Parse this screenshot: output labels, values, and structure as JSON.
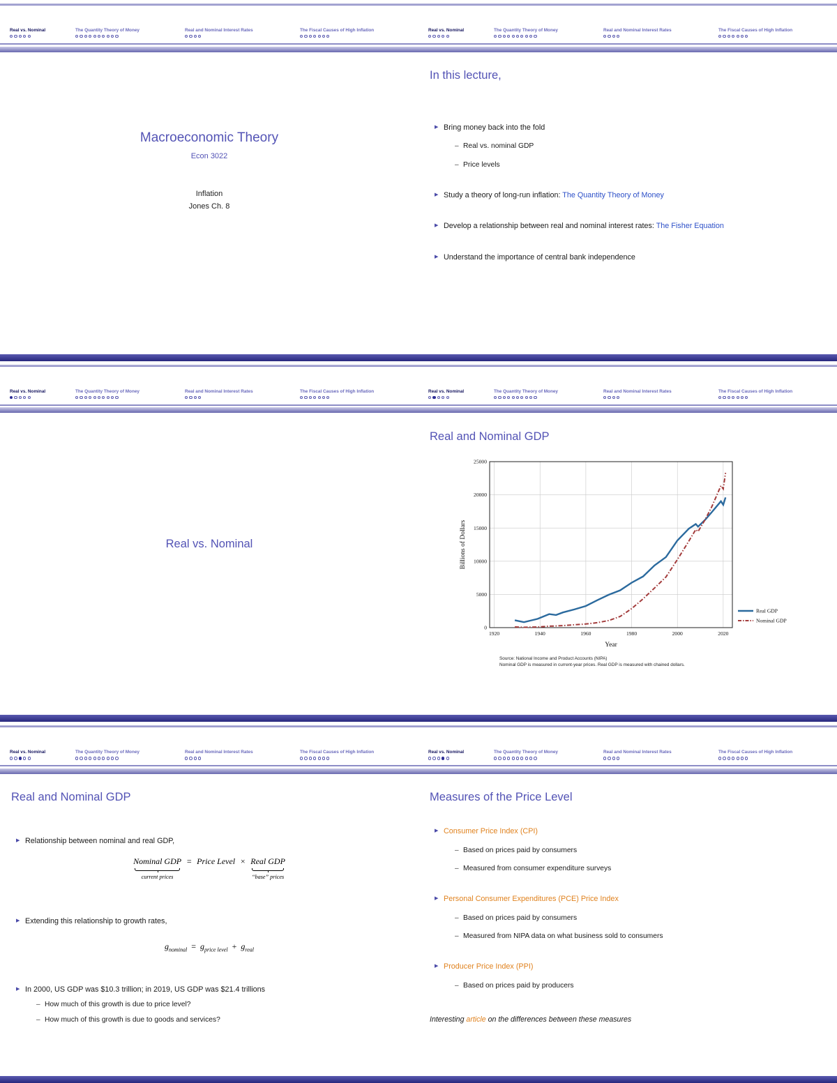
{
  "colors": {
    "structure_blue": "#4a4aa8",
    "frametitle_blue": "#5353b5",
    "nav_active": "#15155f",
    "link_blue": "#2d50c8",
    "alert_orange": "#e0821e",
    "real_gdp_line": "#2b6a9e",
    "nominal_gdp_line": "#a33b3b"
  },
  "markers": {
    "bullet": "▶",
    "sub_dash": "–"
  },
  "nav": {
    "active_section": 0,
    "sections": [
      {
        "label": "Real vs. Nominal",
        "dots": 5
      },
      {
        "label": "The Quantity Theory of Money",
        "dots": 10
      },
      {
        "label": "Real and Nominal Interest Rates",
        "dots": 4
      },
      {
        "label": "The Fiscal Causes of High Inflation",
        "dots": 7
      }
    ]
  },
  "frame_dots_filled": [
    -1,
    -1,
    0,
    1,
    2,
    3
  ],
  "slides": {
    "title": {
      "course": "Macroeconomic Theory",
      "number": "Econ 3022",
      "topic": "Inflation",
      "reading": "Jones Ch. 8"
    },
    "lecture": {
      "frametitle": "In this lecture,",
      "bullets": [
        {
          "text": "Bring money back into the fold",
          "subs": [
            "Real vs. nominal GDP",
            "Price levels"
          ]
        },
        {
          "text": "Study a theory of long-run inflation: ",
          "link": "The Quantity Theory of Money"
        },
        {
          "text": "Develop a relationship between real and nominal interest rates: ",
          "link": "The Fisher Equation"
        },
        {
          "text": "Understand the importance of central bank independence"
        }
      ]
    },
    "section": {
      "title": "Real vs. Nominal"
    },
    "gdp_chart": {
      "frametitle": "Real and Nominal GDP",
      "source_line1": "Source: National Income and Product Accounts (NIPA)",
      "source_line2": "Nominal GDP is measured in current-year prices. Real GDP is measured with chained dollars."
    },
    "gdp_math": {
      "frametitle": "Real and Nominal GDP",
      "b1": "Relationship between nominal and real GDP,",
      "f1": {
        "lhs": "Nominal GDP",
        "eq": "=",
        "mid": "Price Level",
        "times": "×",
        "rhs": "Real GDP",
        "lhs_label": "current prices",
        "rhs_label": "“base” prices"
      },
      "b2": "Extending this relationship to growth rates,",
      "f2": {
        "g1": "g",
        "s1": "nominal",
        "eq": "=",
        "g2": "g",
        "s2": "price level",
        "plus": "+",
        "g3": "g",
        "s3": "real"
      },
      "b3": "In 2000, US GDP was $10.3 trillion; in 2019, US GDP was $21.4 trillions",
      "b3_subs": [
        "How much of this growth is due to price level?",
        "How much of this growth is due to goods and services?"
      ]
    },
    "price": {
      "frametitle": "Measures of the Price Level",
      "bullets": [
        {
          "text": "Consumer Price Index (CPI)",
          "orange": true,
          "subs": [
            "Based on prices paid by consumers",
            "Measured from consumer expenditure surveys"
          ]
        },
        {
          "text": "Personal Consumer Expenditures (PCE) Price Index",
          "orange": true,
          "subs": [
            "Based on prices paid by consumers",
            "Measured from NIPA data on what business sold to consumers"
          ]
        },
        {
          "text": "Producer Price Index (PPI)",
          "orange": true,
          "subs": [
            "Based on prices paid by producers"
          ]
        }
      ],
      "note": [
        {
          "text": "Interesting "
        },
        {
          "text": "article",
          "orange": true
        },
        {
          "text": " on the differences between these measures"
        }
      ]
    }
  },
  "chart_data": {
    "type": "line",
    "title": "",
    "xlabel": "Year",
    "ylabel": "Billions of Dollars",
    "xlim": [
      1918,
      2024
    ],
    "ylim": [
      0,
      25000
    ],
    "xticks": [
      1920,
      1940,
      1960,
      1980,
      2000,
      2020
    ],
    "yticks": [
      0,
      5000,
      10000,
      15000,
      20000,
      25000
    ],
    "grid": true,
    "legend_position": "right",
    "x": [
      1929,
      1933,
      1939,
      1944,
      1947,
      1950,
      1955,
      1960,
      1965,
      1970,
      1975,
      1980,
      1985,
      1990,
      1995,
      2000,
      2005,
      2008,
      2009,
      2012,
      2015,
      2019,
      2020,
      2021
    ],
    "series": [
      {
        "name": "Real GDP",
        "style": "solid",
        "color": "#2b6a9e",
        "values": [
          1110,
          820,
          1320,
          2040,
          1900,
          2290,
          2740,
          3260,
          4130,
          4950,
          5620,
          6760,
          7710,
          9370,
          10630,
          13130,
          14910,
          15600,
          15210,
          16200,
          17400,
          19030,
          18510,
          19610
        ]
      },
      {
        "name": "Nominal GDP",
        "style": "dashdot",
        "color": "#a33b3b",
        "values": [
          105,
          57,
          93,
          224,
          250,
          300,
          426,
          543,
          744,
          1073,
          1685,
          2857,
          4339,
          5963,
          7640,
          10250,
          13040,
          14770,
          14480,
          16200,
          18210,
          21380,
          20890,
          23320
        ]
      }
    ]
  }
}
